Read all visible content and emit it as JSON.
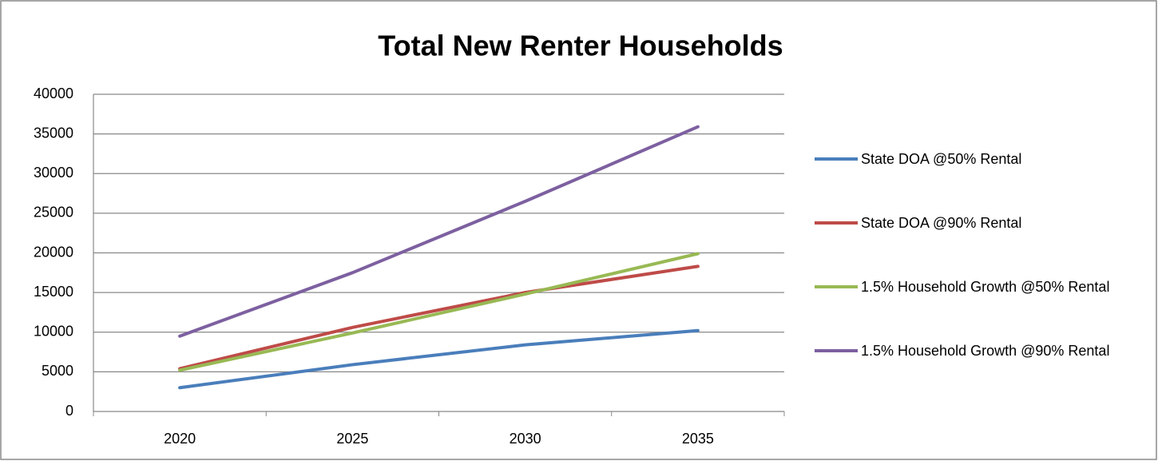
{
  "chart_data": {
    "type": "line",
    "title": "Total New Renter Households",
    "categories": [
      "2020",
      "2025",
      "2030",
      "2035"
    ],
    "series": [
      {
        "name": "State DOA @50% Rental",
        "color": "#4a7ebb",
        "values": [
          3000,
          5900,
          8400,
          10200
        ]
      },
      {
        "name": "State DOA @90% Rental",
        "color": "#be4b48",
        "values": [
          5400,
          10600,
          15000,
          18300
        ]
      },
      {
        "name": "1.5% Household Growth @50% Rental",
        "color": "#98b954",
        "values": [
          5200,
          9900,
          14800,
          19900
        ]
      },
      {
        "name": "1.5% Household Growth @90% Rental",
        "color": "#7d60a0",
        "values": [
          9500,
          17500,
          26500,
          35900
        ]
      }
    ],
    "ylim": [
      0,
      40000
    ],
    "yticks": [
      0,
      5000,
      10000,
      15000,
      20000,
      25000,
      30000,
      35000,
      40000
    ],
    "grid": true,
    "legend": "right"
  }
}
